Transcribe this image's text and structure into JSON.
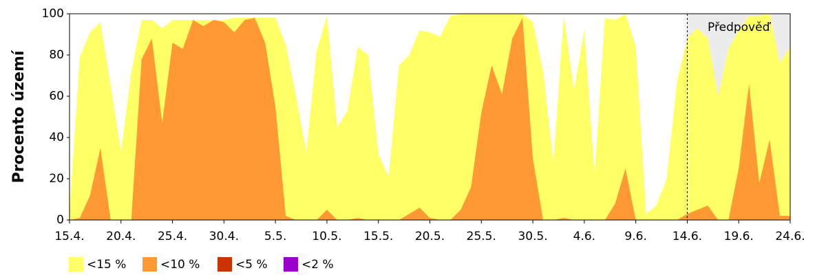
{
  "chart_data": {
    "type": "area",
    "y_label": "Procento území",
    "categories": [
      "15.4.",
      null,
      null,
      null,
      null,
      "20.4.",
      null,
      null,
      null,
      null,
      "25.4.",
      null,
      null,
      null,
      null,
      "30.4.",
      null,
      null,
      null,
      null,
      "5.5.",
      null,
      null,
      null,
      null,
      "10.5.",
      null,
      null,
      null,
      null,
      "15.5.",
      null,
      null,
      null,
      null,
      "20.5.",
      null,
      null,
      null,
      null,
      "25.5.",
      null,
      null,
      null,
      null,
      "30.5.",
      null,
      null,
      null,
      null,
      "4.6.",
      null,
      null,
      null,
      null,
      "9.6.",
      null,
      null,
      null,
      null,
      "14.6.",
      null,
      null,
      null,
      null,
      "19.6.",
      null,
      null,
      null,
      null,
      "24.6."
    ],
    "series": [
      {
        "name": "<15 %",
        "color": "#ffff66",
        "values": [
          5,
          79,
          91,
          96,
          65,
          33,
          72,
          97,
          97,
          93,
          97,
          97,
          97,
          97,
          97,
          97,
          98,
          98,
          98,
          98,
          98,
          85,
          60,
          33,
          82,
          99,
          45,
          53,
          84,
          80,
          32,
          21,
          75,
          80,
          92,
          91,
          89,
          99,
          100,
          100,
          100,
          100,
          100,
          100,
          100,
          96,
          72,
          28,
          99,
          63,
          92,
          22,
          98,
          97,
          100,
          84,
          3,
          7,
          20,
          67,
          88,
          93,
          88,
          60,
          83,
          92,
          99,
          99,
          100,
          76,
          84
        ]
      },
      {
        "name": "<10 %",
        "color": "#ff9933",
        "values": [
          0,
          1,
          12,
          35,
          0,
          0,
          0,
          78,
          88,
          47,
          86,
          83,
          97,
          94,
          97,
          96,
          91,
          97,
          98,
          86,
          55,
          2,
          0,
          0,
          0,
          5,
          0,
          0,
          1,
          0,
          0,
          0,
          0,
          3,
          6,
          1,
          0,
          0,
          5,
          16,
          52,
          75,
          61,
          88,
          98,
          30,
          0,
          0,
          1,
          0,
          0,
          0,
          0,
          8,
          25,
          0,
          0,
          0,
          0,
          0,
          3,
          5,
          7,
          0,
          0,
          25,
          66,
          18,
          39,
          2,
          2
        ]
      },
      {
        "name": "<5 %",
        "color": "#cc3300",
        "values": [
          0,
          0,
          0,
          0,
          0,
          0,
          0,
          0,
          0,
          0,
          0,
          0,
          0,
          0,
          0,
          0,
          0,
          0,
          0,
          0,
          0,
          0,
          0,
          0,
          0,
          0,
          0,
          0,
          0,
          0,
          0,
          0,
          0,
          0,
          0,
          0,
          0,
          0,
          0,
          0,
          0,
          0,
          0,
          0,
          0,
          0,
          0,
          0,
          0,
          0,
          0,
          0,
          0,
          0,
          0,
          0,
          0,
          0,
          0,
          0,
          0,
          0,
          0,
          0,
          0,
          0,
          0,
          0,
          0,
          0,
          0
        ]
      },
      {
        "name": "<2 %",
        "color": "#9900cc",
        "values": [
          0,
          0,
          0,
          0,
          0,
          0,
          0,
          0,
          0,
          0,
          0,
          0,
          0,
          0,
          0,
          0,
          0,
          0,
          0,
          0,
          0,
          0,
          0,
          0,
          0,
          0,
          0,
          0,
          0,
          0,
          0,
          0,
          0,
          0,
          0,
          0,
          0,
          0,
          0,
          0,
          0,
          0,
          0,
          0,
          0,
          0,
          0,
          0,
          0,
          0,
          0,
          0,
          0,
          0,
          0,
          0,
          0,
          0,
          0,
          0,
          0,
          0,
          0,
          0,
          0,
          0,
          0,
          0,
          0,
          0,
          0
        ]
      }
    ],
    "forecast_start": "14.6.",
    "forecast_label": "Předpověď",
    "forecast_color": "#ececec",
    "ylim": [
      0,
      100
    ],
    "yticks": [
      0,
      20,
      40,
      60,
      80,
      100
    ]
  }
}
